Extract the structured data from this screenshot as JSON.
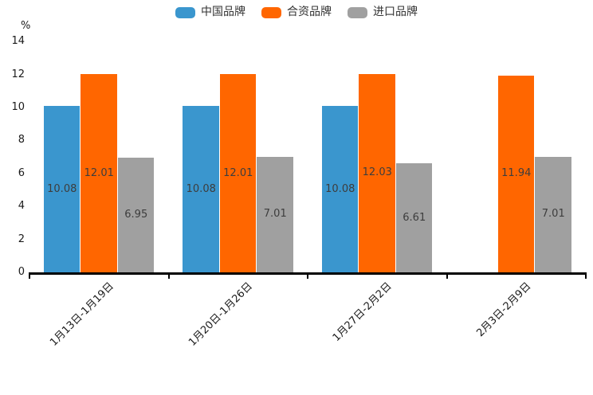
{
  "chart_data": {
    "type": "bar",
    "title": "",
    "unit_label": "%",
    "categories": [
      "1月13日-1月19日",
      "1月20日-1月26日",
      "1月27日-2月2日",
      "2月3日-2月9日"
    ],
    "series": [
      {
        "name": "中国品牌",
        "color": "#3A96CE",
        "values": [
          10.08,
          10.08,
          10.08,
          null
        ]
      },
      {
        "name": "合资品牌",
        "color": "#FF6600",
        "values": [
          12.01,
          12.01,
          12.03,
          11.94
        ]
      },
      {
        "name": "进口品牌",
        "color": "#A0A0A0",
        "values": [
          6.95,
          7.01,
          6.61,
          7.01
        ]
      }
    ],
    "ylim": [
      0,
      14
    ],
    "yticks": [
      0,
      2,
      4,
      6,
      8,
      10,
      12,
      14
    ],
    "legend_position": "top",
    "grid": false,
    "value_labels_shown": true,
    "axis_color": "#000000"
  }
}
